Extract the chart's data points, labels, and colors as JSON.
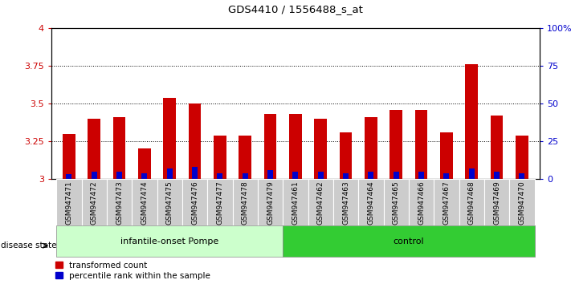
{
  "title": "GDS4410 / 1556488_s_at",
  "samples": [
    "GSM947471",
    "GSM947472",
    "GSM947473",
    "GSM947474",
    "GSM947475",
    "GSM947476",
    "GSM947477",
    "GSM947478",
    "GSM947479",
    "GSM947461",
    "GSM947462",
    "GSM947463",
    "GSM947464",
    "GSM947465",
    "GSM947466",
    "GSM947467",
    "GSM947468",
    "GSM947469",
    "GSM947470"
  ],
  "red_values": [
    3.3,
    3.4,
    3.41,
    3.2,
    3.54,
    3.5,
    3.29,
    3.29,
    3.43,
    3.43,
    3.4,
    3.31,
    3.41,
    3.46,
    3.46,
    3.31,
    3.76,
    3.42,
    3.29
  ],
  "blue_values": [
    0.03,
    0.05,
    0.05,
    0.04,
    0.07,
    0.08,
    0.04,
    0.04,
    0.06,
    0.05,
    0.05,
    0.04,
    0.05,
    0.05,
    0.05,
    0.04,
    0.07,
    0.05,
    0.04
  ],
  "base": 3.0,
  "ylim_left": [
    3.0,
    4.0
  ],
  "ylim_right": [
    0,
    100
  ],
  "yticks_left": [
    3.0,
    3.25,
    3.5,
    3.75,
    4.0
  ],
  "ytick_labels_left": [
    "3",
    "3.25",
    "3.5",
    "3.75",
    "4"
  ],
  "yticks_right": [
    0,
    25,
    50,
    75,
    100
  ],
  "ytick_labels_right": [
    "0",
    "25",
    "50",
    "75",
    "100%"
  ],
  "hlines": [
    3.25,
    3.5,
    3.75
  ],
  "group1_label": "infantile-onset Pompe",
  "group2_label": "control",
  "group1_count": 9,
  "group2_count": 10,
  "disease_state_label": "disease state",
  "legend_red": "transformed count",
  "legend_blue": "percentile rank within the sample",
  "bar_color_red": "#cc0000",
  "bar_color_blue": "#0000cc",
  "group1_bg": "#ccffcc",
  "group2_bg": "#33cc33",
  "tick_bg": "#cccccc",
  "bar_width": 0.5
}
